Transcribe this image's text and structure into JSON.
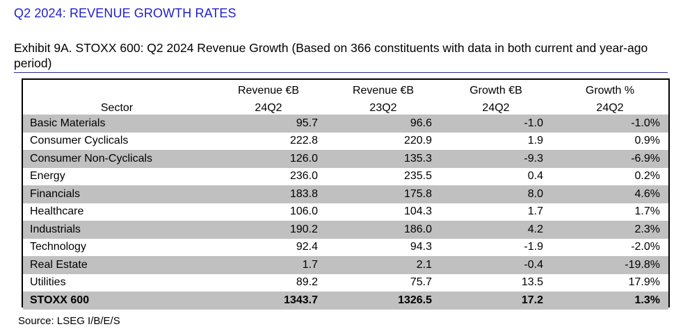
{
  "section_title": "Q2 2024: REVENUE GROWTH RATES",
  "exhibit_title": "Exhibit 9A.  STOXX 600: Q2 2024 Revenue Growth (Based on 366 constituents with data in both current and year-ago period)",
  "table": {
    "header_row1": [
      "",
      "Revenue €B",
      "Revenue €B",
      "Growth €B",
      "Growth %"
    ],
    "header_row2": [
      "Sector",
      "24Q2",
      "23Q2",
      "24Q2",
      "24Q2"
    ],
    "rows": [
      {
        "sector": "Basic Materials",
        "rev_24q2": "95.7",
        "rev_23q2": "96.6",
        "growth_eur": "-1.0",
        "growth_pct": "-1.0%"
      },
      {
        "sector": "Consumer Cyclicals",
        "rev_24q2": "222.8",
        "rev_23q2": "220.9",
        "growth_eur": "1.9",
        "growth_pct": "0.9%"
      },
      {
        "sector": "Consumer Non-Cyclicals",
        "rev_24q2": "126.0",
        "rev_23q2": "135.3",
        "growth_eur": "-9.3",
        "growth_pct": "-6.9%"
      },
      {
        "sector": "Energy",
        "rev_24q2": "236.0",
        "rev_23q2": "235.5",
        "growth_eur": "0.4",
        "growth_pct": "0.2%"
      },
      {
        "sector": "Financials",
        "rev_24q2": "183.8",
        "rev_23q2": "175.8",
        "growth_eur": "8.0",
        "growth_pct": "4.6%"
      },
      {
        "sector": "Healthcare",
        "rev_24q2": "106.0",
        "rev_23q2": "104.3",
        "growth_eur": "1.7",
        "growth_pct": "1.7%"
      },
      {
        "sector": "Industrials",
        "rev_24q2": "190.2",
        "rev_23q2": "186.0",
        "growth_eur": "4.2",
        "growth_pct": "2.3%"
      },
      {
        "sector": "Technology",
        "rev_24q2": "92.4",
        "rev_23q2": "94.3",
        "growth_eur": "-1.9",
        "growth_pct": "-2.0%"
      },
      {
        "sector": "Real Estate",
        "rev_24q2": "1.7",
        "rev_23q2": "2.1",
        "growth_eur": "-0.4",
        "growth_pct": "-19.8%"
      },
      {
        "sector": "Utilities",
        "rev_24q2": "89.2",
        "rev_23q2": "75.7",
        "growth_eur": "13.5",
        "growth_pct": "17.9%"
      }
    ],
    "total": {
      "sector": "STOXX 600",
      "rev_24q2": "1343.7",
      "rev_23q2": "1326.5",
      "growth_eur": "17.2",
      "growth_pct": "1.3%"
    }
  },
  "source": "Source: LSEG I/B/E/S",
  "colors": {
    "title_blue": "#1f1fcc",
    "row_shade": "#c0c0c0",
    "rule_blue": "#2a2a9a"
  }
}
